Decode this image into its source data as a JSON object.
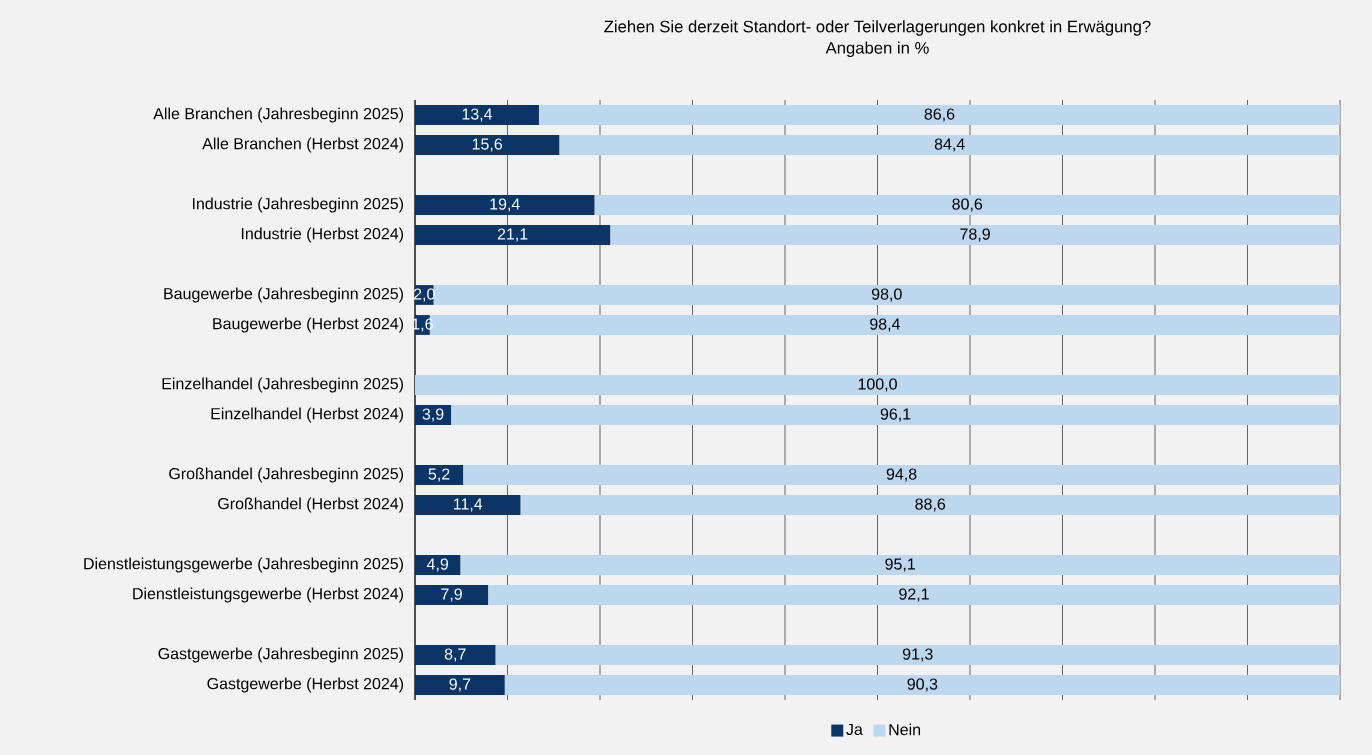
{
  "chart_data": {
    "type": "bar",
    "orientation": "horizontal",
    "stacked": true,
    "title": "Ziehen Sie derzeit Standort- oder Teilverlagerungen konkret in Erwägung?",
    "subtitle": "Angaben in %",
    "categories": [
      "Alle Branchen (Jahresbeginn 2025)",
      "Alle Branchen (Herbst 2024)",
      null,
      "Industrie (Jahresbeginn 2025)",
      "Industrie (Herbst 2024)",
      null,
      "Baugewerbe (Jahresbeginn 2025)",
      "Baugewerbe (Herbst 2024)",
      null,
      "Einzelhandel (Jahresbeginn 2025)",
      "Einzelhandel (Herbst 2024)",
      null,
      "Großhandel (Jahresbeginn 2025)",
      "Großhandel (Herbst 2024)",
      null,
      "Dienstleistungsgewerbe (Jahresbeginn 2025)",
      "Dienstleistungsgewerbe (Herbst 2024)",
      null,
      "Gastgewerbe (Jahresbeginn 2025)",
      "Gastgewerbe (Herbst 2024)"
    ],
    "series": [
      {
        "name": "Ja",
        "color": "#0b3566",
        "values": [
          13.4,
          15.6,
          null,
          19.4,
          21.1,
          null,
          2.0,
          1.6,
          null,
          0,
          3.9,
          null,
          5.2,
          11.4,
          null,
          4.9,
          7.9,
          null,
          8.7,
          9.7
        ],
        "value_labels": [
          "13,4",
          "15,6",
          null,
          "19,4",
          "21,1",
          null,
          "2,0",
          "1,6",
          null,
          null,
          "3,9",
          null,
          "5,2",
          "11,4",
          null,
          "4,9",
          "7,9",
          null,
          "8,7",
          "9,7"
        ]
      },
      {
        "name": "Nein",
        "color": "#bdd7ee",
        "values": [
          86.6,
          84.4,
          null,
          80.6,
          78.9,
          null,
          98.0,
          98.4,
          null,
          100.0,
          96.1,
          null,
          94.8,
          88.6,
          null,
          95.1,
          92.1,
          null,
          91.3,
          90.3
        ],
        "value_labels": [
          "86,6",
          "84,4",
          null,
          "80,6",
          "78,9",
          null,
          "98,0",
          "98,4",
          null,
          "100,0",
          "96,1",
          null,
          "94,8",
          "88,6",
          null,
          "95,1",
          "92,1",
          null,
          "91,3",
          "90,3"
        ]
      }
    ],
    "xlim": [
      0,
      100
    ],
    "xticks": [
      {
        "value": 0,
        "label": null
      },
      {
        "value": 10,
        "label": null
      },
      {
        "value": 20,
        "label": null
      },
      {
        "value": 30,
        "label": null
      },
      {
        "value": 40,
        "label": null
      },
      {
        "value": 50,
        "label": null
      },
      {
        "value": 60,
        "label": null
      },
      {
        "value": 70,
        "label": null
      },
      {
        "value": 80,
        "label": null
      },
      {
        "value": 90,
        "label": null
      },
      {
        "value": 100,
        "label": null
      }
    ],
    "tick_labels": "y",
    "grid": "x",
    "legend": "bottom"
  }
}
